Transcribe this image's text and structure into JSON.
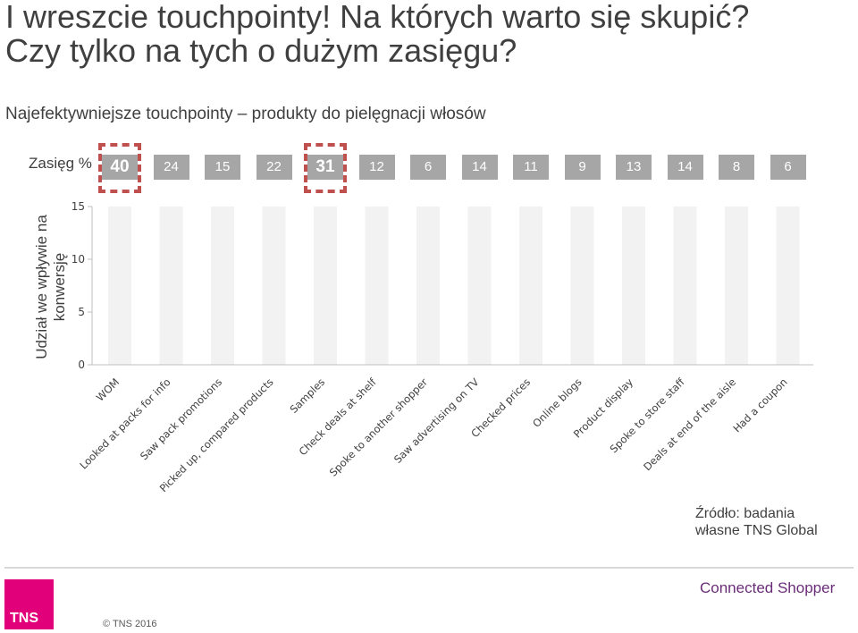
{
  "header": {
    "title_line1": "I wreszcie touchpointy! Na których warto się skupić?",
    "title_line2": "Czy tylko na tych o dużym zasięgu?",
    "subtitle": "Najefektywniejsze touchpointy – produkty do pielęgnacji włosów"
  },
  "reach": {
    "label": "Zasięg %",
    "values": [
      "40",
      "24",
      "15",
      "22",
      "31",
      "12",
      "6",
      "14",
      "11",
      "9",
      "13",
      "14",
      "8",
      "6"
    ],
    "highlighted": [
      0,
      4
    ],
    "highlight_color": "#c0504d"
  },
  "chart_data": {
    "type": "bar",
    "categories": [
      "WOM",
      "Looked at packs for info",
      "Saw pack promotions",
      "Picked up, compared products",
      "Samples",
      "Check deals at shelf",
      "Spoke to another shopper",
      "Saw advertising on TV",
      "Checked prices",
      "Online blogs",
      "Product display",
      "Spoke to store staff",
      "Deals at end of the aisle",
      "Had a coupon"
    ],
    "values": [
      null,
      null,
      null,
      null,
      null,
      null,
      null,
      null,
      null,
      null,
      null,
      null,
      null,
      null
    ],
    "ylabel": "Udział we wpływie na konwersję",
    "ylim": [
      0,
      15
    ],
    "yticks": [
      "0",
      "5",
      "10",
      "15"
    ],
    "background_column_color": "#f2f2f2"
  },
  "footer": {
    "source_line1": "Źródło: badania",
    "source_line2": "własne TNS Global",
    "logo_text": "TNS",
    "copyright": "© TNS 2016",
    "brand": "Connected Shopper",
    "brand_color": "#6a2c78",
    "logo_color": "#e2007a"
  }
}
